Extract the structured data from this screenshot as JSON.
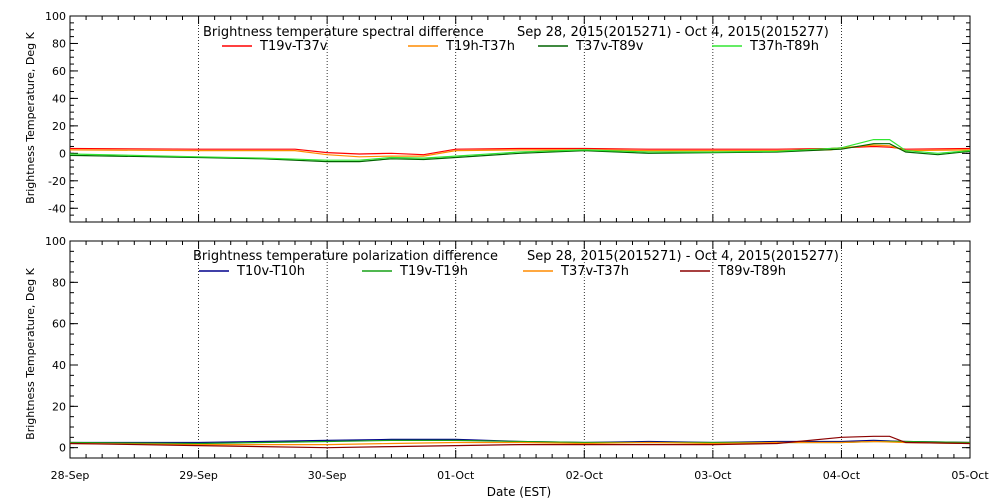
{
  "x_axis": {
    "label": "Date (EST)",
    "ticks": [
      "28-Sep",
      "29-Sep",
      "30-Sep",
      "01-Oct",
      "02-Oct",
      "03-Oct",
      "04-Oct",
      "05-Oct"
    ]
  },
  "colors": {
    "red": "#ff0000",
    "orange": "#ff8c00",
    "darkgreen": "#006400",
    "lightgreen": "#32e632",
    "navy": "#00008b",
    "green": "#16a016",
    "darkred": "#8b0000"
  },
  "chart_data": [
    {
      "type": "line",
      "title": "Brightness temperature spectral difference",
      "date_range": "Sep 28, 2015(2015271) - Oct  4, 2015(2015277)",
      "ylabel": "Brightness Temperature, Deg K",
      "ylim": [
        -50,
        100
      ],
      "yticks": [
        -40,
        -20,
        0,
        20,
        40,
        60,
        80,
        100
      ],
      "xlim": [
        "2015-09-28",
        "2015-10-05"
      ],
      "grid": "vertical dotted at day boundaries",
      "legend": "top",
      "series": [
        {
          "name": "T19v-T37v",
          "color": "#ff0000",
          "points": [
            [
              "2015-09-28",
              3.5
            ],
            [
              "2015-09-29",
              3
            ],
            [
              "2015-09-29 18:00",
              3
            ],
            [
              "2015-09-30",
              0.5
            ],
            [
              "2015-09-30 06:00",
              -0.5
            ],
            [
              "2015-09-30 12:00",
              0
            ],
            [
              "2015-09-30 18:00",
              -1
            ],
            [
              "2015-10-01",
              3
            ],
            [
              "2015-10-01 12:00",
              3.5
            ],
            [
              "2015-10-02",
              3.5
            ],
            [
              "2015-10-02 12:00",
              3
            ],
            [
              "2015-10-03",
              3
            ],
            [
              "2015-10-03 12:00",
              3
            ],
            [
              "2015-10-03 22:00",
              3.5
            ],
            [
              "2015-10-04",
              4
            ],
            [
              "2015-10-04 06:00",
              5
            ],
            [
              "2015-10-04 09:00",
              4.5
            ],
            [
              "2015-10-04 12:00",
              3
            ],
            [
              "2015-10-05",
              3.5
            ]
          ]
        },
        {
          "name": "T19h-T37h",
          "color": "#ff8c00",
          "points": [
            [
              "2015-09-28",
              2.5
            ],
            [
              "2015-09-29",
              2
            ],
            [
              "2015-09-29 18:00",
              2
            ],
            [
              "2015-09-30",
              -1
            ],
            [
              "2015-09-30 06:00",
              -2.5
            ],
            [
              "2015-09-30 12:00",
              -2
            ],
            [
              "2015-09-30 18:00",
              -2
            ],
            [
              "2015-10-01",
              2
            ],
            [
              "2015-10-01 12:00",
              2.5
            ],
            [
              "2015-10-02",
              2.5
            ],
            [
              "2015-10-02 12:00",
              2
            ],
            [
              "2015-10-03",
              2
            ],
            [
              "2015-10-03 12:00",
              2
            ],
            [
              "2015-10-03 22:00",
              2.5
            ],
            [
              "2015-10-04",
              4
            ],
            [
              "2015-10-04 06:00",
              6
            ],
            [
              "2015-10-04 09:00",
              5.5
            ],
            [
              "2015-10-04 12:00",
              2
            ],
            [
              "2015-10-05",
              2.5
            ]
          ]
        },
        {
          "name": "T37v-T89v",
          "color": "#006400",
          "points": [
            [
              "2015-09-28",
              -1.5
            ],
            [
              "2015-09-29",
              -3
            ],
            [
              "2015-09-29 12:00",
              -4
            ],
            [
              "2015-09-30",
              -6
            ],
            [
              "2015-09-30 06:00",
              -6
            ],
            [
              "2015-09-30 12:00",
              -4
            ],
            [
              "2015-09-30 18:00",
              -4.5
            ],
            [
              "2015-10-01",
              -3
            ],
            [
              "2015-10-01 12:00",
              0
            ],
            [
              "2015-10-02",
              2
            ],
            [
              "2015-10-02 12:00",
              0
            ],
            [
              "2015-10-03",
              0.5
            ],
            [
              "2015-10-03 12:00",
              1
            ],
            [
              "2015-10-04",
              3
            ],
            [
              "2015-10-04 06:00",
              7
            ],
            [
              "2015-10-04 09:00",
              7
            ],
            [
              "2015-10-04 12:00",
              1
            ],
            [
              "2015-10-04 18:00",
              -1
            ],
            [
              "2015-10-05",
              1.5
            ]
          ]
        },
        {
          "name": "T37h-T89h",
          "color": "#32e632",
          "points": [
            [
              "2015-09-28",
              -0.5
            ],
            [
              "2015-09-29",
              -2.5
            ],
            [
              "2015-09-29 12:00",
              -3.5
            ],
            [
              "2015-09-30",
              -5
            ],
            [
              "2015-09-30 06:00",
              -5
            ],
            [
              "2015-09-30 12:00",
              -3
            ],
            [
              "2015-09-30 18:00",
              -3.5
            ],
            [
              "2015-10-01",
              -2
            ],
            [
              "2015-10-01 12:00",
              1
            ],
            [
              "2015-10-02",
              2.5
            ],
            [
              "2015-10-02 12:00",
              1
            ],
            [
              "2015-10-03",
              1
            ],
            [
              "2015-10-03 12:00",
              1.5
            ],
            [
              "2015-10-04",
              4
            ],
            [
              "2015-10-04 06:00",
              10
            ],
            [
              "2015-10-04 09:00",
              10
            ],
            [
              "2015-10-04 12:00",
              2
            ],
            [
              "2015-10-04 18:00",
              0
            ],
            [
              "2015-10-05",
              2
            ]
          ]
        }
      ]
    },
    {
      "type": "line",
      "title": "Brightness temperature polarization difference",
      "date_range": "Sep 28, 2015(2015271) - Oct  4, 2015(2015277)",
      "ylabel": "Brightness Temperature, Deg K",
      "ylim": [
        -5,
        100
      ],
      "yticks": [
        0,
        20,
        40,
        60,
        80,
        100
      ],
      "xlim": [
        "2015-09-28",
        "2015-10-05"
      ],
      "grid": "vertical dotted at day boundaries",
      "legend": "top",
      "series": [
        {
          "name": "T10v-T10h",
          "color": "#00008b",
          "points": [
            [
              "2015-09-28",
              2.5
            ],
            [
              "2015-09-29",
              2.5
            ],
            [
              "2015-09-30",
              3.5
            ],
            [
              "2015-09-30 12:00",
              4
            ],
            [
              "2015-10-01",
              4
            ],
            [
              "2015-10-01 12:00",
              3
            ],
            [
              "2015-10-02",
              2.5
            ],
            [
              "2015-10-02 12:00",
              3
            ],
            [
              "2015-10-03",
              2.5
            ],
            [
              "2015-10-03 12:00",
              3
            ],
            [
              "2015-10-04",
              3
            ],
            [
              "2015-10-04 06:00",
              3.5
            ],
            [
              "2015-10-04 12:00",
              3
            ],
            [
              "2015-10-05",
              2.5
            ]
          ]
        },
        {
          "name": "T19v-T19h",
          "color": "#16a016",
          "points": [
            [
              "2015-09-28",
              2.5
            ],
            [
              "2015-09-29",
              2
            ],
            [
              "2015-09-30",
              3
            ],
            [
              "2015-09-30 12:00",
              3.5
            ],
            [
              "2015-10-01",
              3.5
            ],
            [
              "2015-10-01 12:00",
              3
            ],
            [
              "2015-10-02",
              2.5
            ],
            [
              "2015-10-02 12:00",
              2.5
            ],
            [
              "2015-10-03",
              2.5
            ],
            [
              "2015-10-03 12:00",
              2.5
            ],
            [
              "2015-10-04",
              2.5
            ],
            [
              "2015-10-04 06:00",
              3
            ],
            [
              "2015-10-04 12:00",
              3
            ],
            [
              "2015-10-05",
              2.5
            ]
          ]
        },
        {
          "name": "T37v-T37h",
          "color": "#ff8c00",
          "points": [
            [
              "2015-09-28",
              2
            ],
            [
              "2015-09-29",
              1.5
            ],
            [
              "2015-09-30",
              1.5
            ],
            [
              "2015-09-30 12:00",
              2
            ],
            [
              "2015-10-01",
              2.5
            ],
            [
              "2015-10-01 12:00",
              2.5
            ],
            [
              "2015-10-02",
              2
            ],
            [
              "2015-10-02 12:00",
              2.5
            ],
            [
              "2015-10-03",
              2
            ],
            [
              "2015-10-03 12:00",
              2.5
            ],
            [
              "2015-10-04",
              2.5
            ],
            [
              "2015-10-04 06:00",
              3
            ],
            [
              "2015-10-04 12:00",
              2.5
            ],
            [
              "2015-10-05",
              2
            ]
          ]
        },
        {
          "name": "T89v-T89h",
          "color": "#8b0000",
          "points": [
            [
              "2015-09-28",
              2
            ],
            [
              "2015-09-29",
              1
            ],
            [
              "2015-09-30",
              0
            ],
            [
              "2015-09-30 12:00",
              0.5
            ],
            [
              "2015-10-01",
              1
            ],
            [
              "2015-10-01 12:00",
              1.5
            ],
            [
              "2015-10-02",
              1.5
            ],
            [
              "2015-10-02 12:00",
              1.5
            ],
            [
              "2015-10-03",
              1.5
            ],
            [
              "2015-10-03 12:00",
              2
            ],
            [
              "2015-10-04",
              5
            ],
            [
              "2015-10-04 06:00",
              5.5
            ],
            [
              "2015-10-04 09:00",
              5.5
            ],
            [
              "2015-10-04 12:00",
              2.5
            ],
            [
              "2015-10-05",
              2
            ]
          ]
        }
      ]
    }
  ]
}
